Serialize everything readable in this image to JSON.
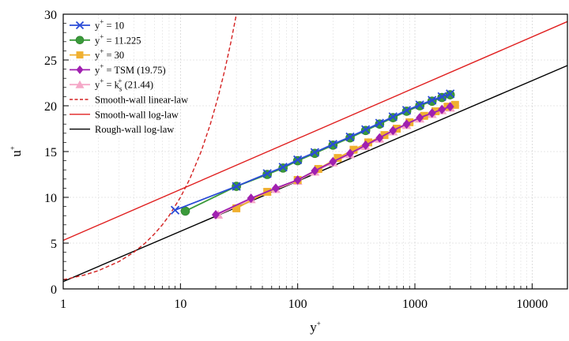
{
  "chart_data": {
    "type": "line",
    "xscale": "log",
    "xlim": [
      1,
      20000
    ],
    "ylim": [
      0,
      30
    ],
    "xticks": [
      {
        "value": 1,
        "label": "1"
      },
      {
        "value": 10,
        "label": "10"
      },
      {
        "value": 100,
        "label": "100"
      },
      {
        "value": 1000,
        "label": "1000"
      },
      {
        "value": 10000,
        "label": "10000"
      }
    ],
    "yticks": [
      {
        "value": 0,
        "label": "0"
      },
      {
        "value": 5,
        "label": "5"
      },
      {
        "value": 10,
        "label": "10"
      },
      {
        "value": 15,
        "label": "15"
      },
      {
        "value": 20,
        "label": "20"
      },
      {
        "value": 25,
        "label": "25"
      },
      {
        "value": 30,
        "label": "30"
      }
    ],
    "xlabel": {
      "base": "y",
      "sup": "+"
    },
    "ylabel": {
      "base": "u",
      "sup": "+"
    },
    "grid": true,
    "legend_position": "top-left",
    "series": [
      {
        "name": {
          "base": "y",
          "sup": "+",
          "rest": " = 10"
        },
        "color": "#2a4bd7",
        "marker": "x",
        "x": [
          9,
          30,
          55,
          75,
          100,
          140,
          200,
          280,
          380,
          500,
          650,
          850,
          1100,
          1400,
          1700,
          2000
        ],
        "y": [
          8.6,
          11.2,
          12.6,
          13.3,
          14.1,
          14.9,
          15.8,
          16.6,
          17.4,
          18.1,
          18.8,
          19.5,
          20.1,
          20.6,
          21.0,
          21.3
        ]
      },
      {
        "name": {
          "base": "y",
          "sup": "+",
          "rest": " = 11.225"
        },
        "color": "#3a9a3a",
        "marker": "circle",
        "x": [
          11,
          30,
          55,
          75,
          100,
          140,
          200,
          280,
          380,
          500,
          650,
          850,
          1100,
          1400,
          1700,
          2000
        ],
        "y": [
          8.5,
          11.2,
          12.5,
          13.2,
          14.0,
          14.8,
          15.7,
          16.5,
          17.3,
          18.0,
          18.7,
          19.4,
          20.0,
          20.5,
          20.9,
          21.2
        ]
      },
      {
        "name": {
          "base": "y",
          "sup": "+",
          "rest": " = 30"
        },
        "color": "#f0b030",
        "marker": "square",
        "x": [
          30,
          55,
          100,
          150,
          220,
          300,
          400,
          550,
          700,
          900,
          1200,
          1500,
          1900,
          2200
        ],
        "y": [
          8.8,
          10.6,
          11.9,
          13.1,
          14.3,
          15.2,
          16.0,
          16.8,
          17.5,
          18.2,
          18.9,
          19.4,
          19.9,
          20.1
        ]
      },
      {
        "name": {
          "base": "y",
          "sup": "+",
          "rest": " = TSM (19.75)"
        },
        "color": "#a020b0",
        "marker": "diamond",
        "x": [
          20,
          40,
          65,
          100,
          140,
          200,
          280,
          380,
          500,
          650,
          850,
          1100,
          1400,
          1700,
          2000
        ],
        "y": [
          8.1,
          9.9,
          11.0,
          11.9,
          12.9,
          13.9,
          14.8,
          15.7,
          16.5,
          17.3,
          18.0,
          18.7,
          19.2,
          19.6,
          19.9
        ]
      },
      {
        "name": {
          "base": "y",
          "sup": "+",
          "rest": " = k",
          "sub2": "s",
          "sup2": "+",
          "rest2": " (21.44)"
        },
        "color": "#f5a8c8",
        "marker": "triangle",
        "x": [
          21,
          40,
          65,
          100,
          140,
          200,
          280,
          380,
          500,
          650,
          850,
          1100,
          1400,
          1700,
          2000
        ],
        "y": [
          8.1,
          9.8,
          10.9,
          11.8,
          12.8,
          13.8,
          14.7,
          15.6,
          16.4,
          17.2,
          17.9,
          18.6,
          19.1,
          19.5,
          19.8
        ]
      },
      {
        "name": {
          "base": "Smooth-wall linear-law"
        },
        "color": "#d42020",
        "dash": true,
        "marker": "none",
        "x": [
          1,
          1.5,
          2,
          3,
          4,
          5,
          6,
          7,
          8,
          10,
          12,
          15,
          18,
          21,
          24,
          27,
          30
        ],
        "y": [
          1,
          1.5,
          2,
          3,
          4,
          5,
          6,
          7,
          8,
          10,
          12,
          15,
          18,
          21,
          24,
          27,
          30
        ]
      },
      {
        "name": {
          "base": "Smooth-wall log-law"
        },
        "color": "#e02020",
        "marker": "none",
        "x": [
          1,
          20000
        ],
        "y": [
          5.3,
          29.2
        ]
      },
      {
        "name": {
          "base": "Rough-wall log-law"
        },
        "color": "#000000",
        "marker": "none",
        "x": [
          1,
          20000
        ],
        "y": [
          0.8,
          24.4
        ]
      }
    ]
  }
}
